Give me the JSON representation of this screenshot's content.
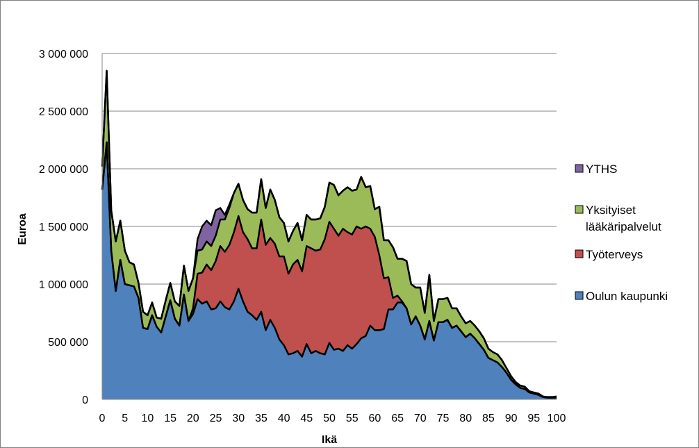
{
  "chart_data": {
    "type": "area",
    "stacked": true,
    "xlabel": "Ikä",
    "ylabel": "Euroa",
    "xlim": [
      0,
      100
    ],
    "ylim": [
      0,
      3000000
    ],
    "x_ticks": [
      0,
      5,
      10,
      15,
      20,
      25,
      30,
      35,
      40,
      45,
      50,
      55,
      60,
      65,
      70,
      75,
      80,
      85,
      90,
      95,
      100
    ],
    "y_ticks": [
      0,
      500000,
      1000000,
      1500000,
      2000000,
      2500000,
      3000000
    ],
    "y_tick_labels": [
      "0",
      "500 000",
      "1 000 000",
      "1 500 000",
      "2 000 000",
      "2 500 000",
      "3 000 000"
    ],
    "grid": "horizontal",
    "legend_position": "right",
    "x": [
      0,
      1,
      2,
      3,
      4,
      5,
      6,
      7,
      8,
      9,
      10,
      11,
      12,
      13,
      14,
      15,
      16,
      17,
      18,
      19,
      20,
      21,
      22,
      23,
      24,
      25,
      26,
      27,
      28,
      29,
      30,
      31,
      32,
      33,
      34,
      35,
      36,
      37,
      38,
      39,
      40,
      41,
      42,
      43,
      44,
      45,
      46,
      47,
      48,
      49,
      50,
      51,
      52,
      53,
      54,
      55,
      56,
      57,
      58,
      59,
      60,
      61,
      62,
      63,
      64,
      65,
      66,
      67,
      68,
      69,
      70,
      71,
      72,
      73,
      74,
      75,
      76,
      77,
      78,
      79,
      80,
      81,
      82,
      83,
      84,
      85,
      86,
      87,
      88,
      89,
      90,
      91,
      92,
      93,
      94,
      95,
      96,
      97,
      98,
      99,
      100
    ],
    "series": [
      {
        "name": "Oulun kaupunki",
        "color": "#4f81bd",
        "values": [
          1820000,
          2230000,
          1290000,
          940000,
          1210000,
          1000000,
          990000,
          980000,
          880000,
          620000,
          610000,
          730000,
          630000,
          580000,
          720000,
          860000,
          700000,
          640000,
          910000,
          680000,
          740000,
          870000,
          830000,
          850000,
          780000,
          790000,
          850000,
          800000,
          780000,
          850000,
          960000,
          850000,
          760000,
          730000,
          690000,
          760000,
          600000,
          690000,
          620000,
          520000,
          470000,
          390000,
          400000,
          420000,
          370000,
          480000,
          400000,
          420000,
          400000,
          390000,
          490000,
          430000,
          440000,
          420000,
          470000,
          440000,
          480000,
          530000,
          550000,
          640000,
          600000,
          600000,
          610000,
          780000,
          780000,
          840000,
          840000,
          790000,
          650000,
          720000,
          640000,
          520000,
          680000,
          510000,
          670000,
          670000,
          690000,
          620000,
          640000,
          590000,
          540000,
          570000,
          530000,
          480000,
          430000,
          360000,
          340000,
          320000,
          280000,
          230000,
          170000,
          130000,
          100000,
          90000,
          60000,
          50000,
          40000,
          20000,
          15000,
          15000,
          15000
        ]
      },
      {
        "name": "Työterveys",
        "color": "#c0504d",
        "values": [
          0,
          0,
          0,
          0,
          0,
          0,
          0,
          0,
          0,
          0,
          0,
          0,
          0,
          0,
          0,
          0,
          0,
          0,
          0,
          0,
          50000,
          220000,
          270000,
          320000,
          340000,
          410000,
          480000,
          480000,
          560000,
          600000,
          630000,
          600000,
          630000,
          580000,
          620000,
          800000,
          740000,
          710000,
          730000,
          720000,
          770000,
          700000,
          770000,
          790000,
          740000,
          850000,
          910000,
          870000,
          900000,
          1000000,
          1050000,
          1050000,
          980000,
          1060000,
          980000,
          990000,
          1020000,
          950000,
          950000,
          840000,
          810000,
          650000,
          440000,
          280000,
          100000,
          60000,
          10000,
          0,
          0,
          0,
          0,
          0,
          0,
          0,
          0,
          0,
          0,
          0,
          0,
          0,
          0,
          0,
          0,
          0,
          0,
          0,
          0,
          0,
          0,
          0,
          0,
          0,
          0,
          0,
          0,
          0,
          0,
          0,
          0,
          0,
          0
        ]
      },
      {
        "name": "Yksityiset lääkäripalvelut",
        "color": "#9bbb59",
        "values": [
          200000,
          620000,
          350000,
          430000,
          340000,
          290000,
          200000,
          190000,
          130000,
          140000,
          120000,
          110000,
          80000,
          120000,
          140000,
          150000,
          150000,
          170000,
          250000,
          260000,
          260000,
          200000,
          200000,
          200000,
          210000,
          220000,
          230000,
          280000,
          320000,
          340000,
          280000,
          280000,
          260000,
          310000,
          310000,
          350000,
          320000,
          420000,
          380000,
          340000,
          290000,
          280000,
          290000,
          320000,
          270000,
          270000,
          250000,
          270000,
          270000,
          280000,
          340000,
          380000,
          350000,
          330000,
          390000,
          380000,
          320000,
          450000,
          340000,
          370000,
          240000,
          420000,
          330000,
          320000,
          440000,
          320000,
          370000,
          410000,
          350000,
          250000,
          330000,
          230000,
          400000,
          170000,
          200000,
          200000,
          190000,
          170000,
          150000,
          130000,
          120000,
          110000,
          110000,
          110000,
          100000,
          80000,
          70000,
          70000,
          60000,
          40000,
          30000,
          20000,
          20000,
          20000,
          10000,
          10000,
          10000,
          5000,
          5000,
          5000,
          10000
        ]
      },
      {
        "name": "YTHS",
        "color": "#8064a2",
        "values": [
          0,
          0,
          0,
          0,
          0,
          0,
          0,
          0,
          0,
          0,
          0,
          0,
          0,
          0,
          0,
          0,
          0,
          0,
          0,
          0,
          0,
          100000,
          200000,
          180000,
          180000,
          220000,
          100000,
          40000,
          30000,
          0,
          0,
          0,
          0,
          0,
          0,
          0,
          0,
          0,
          0,
          0,
          0,
          0,
          0,
          0,
          0,
          0,
          0,
          0,
          0,
          0,
          0,
          0,
          0,
          0,
          0,
          0,
          0,
          0,
          0,
          0,
          0,
          0,
          0,
          0,
          0,
          0,
          0,
          0,
          0,
          0,
          0,
          0,
          0,
          0,
          0,
          0,
          0,
          0,
          0,
          0,
          0,
          0,
          0,
          0,
          0,
          0,
          0,
          0,
          0,
          0,
          0,
          0,
          0,
          0,
          0,
          0,
          0,
          0,
          0,
          0,
          0
        ]
      }
    ],
    "legend_order": [
      "YTHS",
      "Yksityiset lääkäripalvelut",
      "Työterveys",
      "Oulun kaupunki"
    ],
    "legend_lines": {
      "YTHS": [
        "YTHS"
      ],
      "Yksityiset lääkäripalvelut": [
        "Yksityiset",
        "lääkäripalvelut"
      ],
      "Työterveys": [
        "Työterveys"
      ],
      "Oulun kaupunki": [
        "Oulun kaupunki"
      ]
    }
  }
}
